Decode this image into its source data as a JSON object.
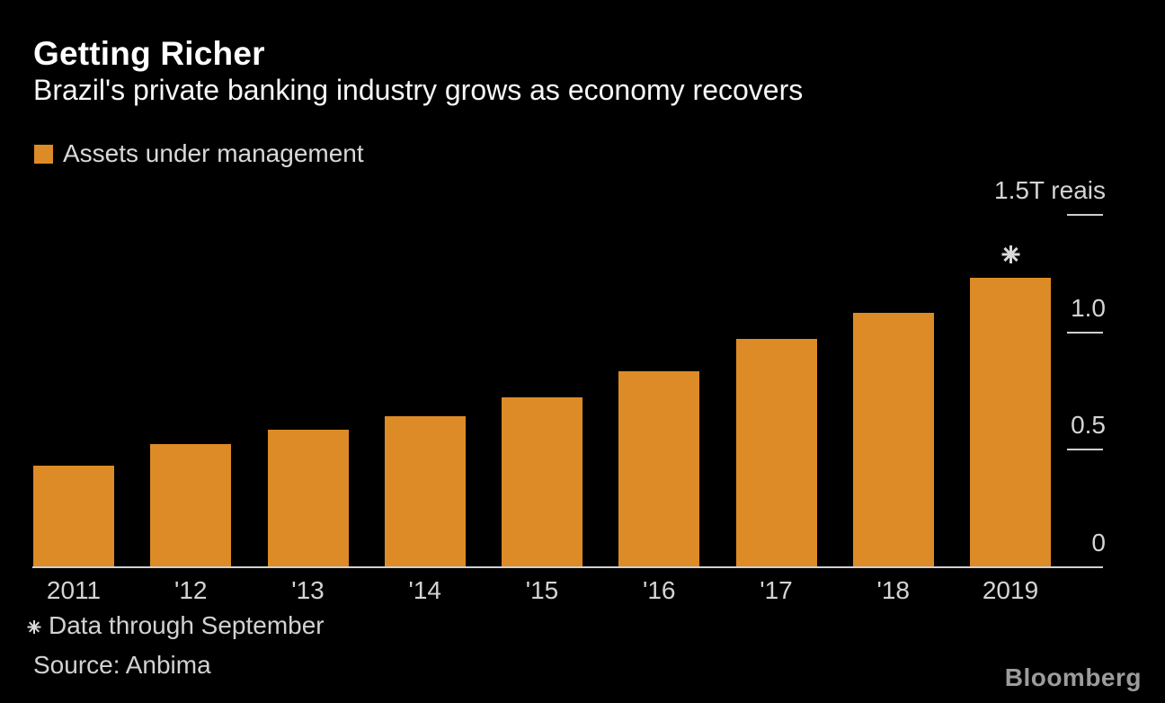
{
  "header": {
    "title": "Getting Richer",
    "subtitle": "Brazil's private banking industry grows as economy recovers"
  },
  "legend": {
    "label": "Assets under management",
    "swatch_color": "#dd8b26"
  },
  "chart_data": {
    "type": "bar",
    "title": "Getting Richer",
    "subtitle": "Brazil's private banking industry grows as economy recovers",
    "series_name": "Assets under management",
    "unit": "T reais",
    "categories": [
      "2011",
      "'12",
      "'13",
      "'14",
      "'15",
      "'16",
      "'17",
      "'18",
      "2019"
    ],
    "values": [
      0.43,
      0.52,
      0.58,
      0.64,
      0.72,
      0.83,
      0.97,
      1.08,
      1.23
    ],
    "ylim": [
      0,
      1.5
    ],
    "yticks": [
      {
        "value": 1.5,
        "label": "1.5T reais"
      },
      {
        "value": 1.0,
        "label": "1.0"
      },
      {
        "value": 0.5,
        "label": "0.5"
      },
      {
        "value": 0.0,
        "label": "0"
      }
    ],
    "bar_color": "#dd8b26",
    "axis_color": "#d0d0d0",
    "grid": false,
    "legend_position": "top-left",
    "annotation": {
      "category": "2019",
      "marker": "asterisk",
      "note": "Data through September"
    }
  },
  "footnote": {
    "text": "Data through September"
  },
  "source": {
    "text": "Source: Anbima"
  },
  "branding": {
    "logo_text": "Bloomberg"
  },
  "colors": {
    "background": "#000000",
    "title_text": "#ffffff",
    "secondary_text": "#d4d4d4",
    "axis": "#d0d0d0",
    "bar": "#dd8b26",
    "logo": "#9c9c9c"
  }
}
